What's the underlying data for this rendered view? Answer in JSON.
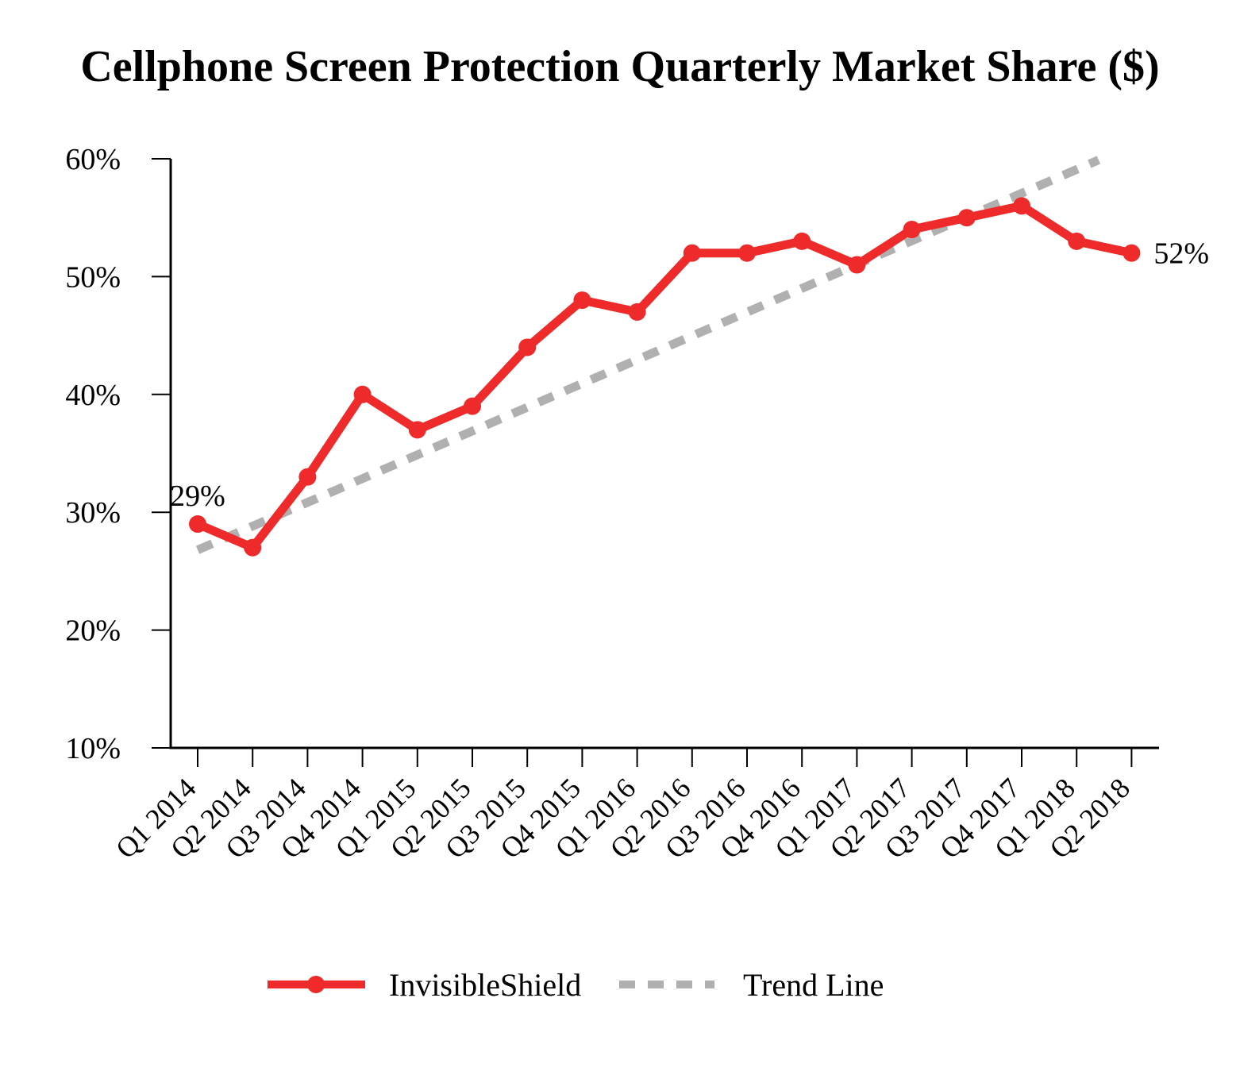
{
  "chart_data": {
    "type": "line",
    "title": "Cellphone Screen Protection Quarterly Market Share ($)",
    "xlabel": "",
    "ylabel": "",
    "categories": [
      "Q1 2014",
      "Q2 2014",
      "Q3 2014",
      "Q4 2014",
      "Q1 2015",
      "Q2 2015",
      "Q3 2015",
      "Q4 2015",
      "Q1 2016",
      "Q2 2016",
      "Q3 2016",
      "Q4 2016",
      "Q1 2017",
      "Q2 2017",
      "Q3 2017",
      "Q4 2017",
      "Q1 2018",
      "Q2 2018"
    ],
    "ylim": [
      10,
      60
    ],
    "yticks": [
      10,
      20,
      30,
      40,
      50,
      60
    ],
    "ytick_labels": [
      "10%",
      "20%",
      "30%",
      "40%",
      "50%",
      "60%"
    ],
    "grid": false,
    "legend_position": "bottom",
    "series": [
      {
        "name": "InvisibleShield",
        "color": "#ee2a2a",
        "style": "solid-with-markers",
        "values": [
          29,
          27,
          33,
          40,
          37,
          39,
          44,
          48,
          47,
          52,
          52,
          53,
          51,
          54,
          55,
          56,
          53,
          52
        ]
      },
      {
        "name": "Trend Line",
        "color": "#b0b0b0",
        "style": "dashed",
        "start": {
          "x_index": 0,
          "y": 26.8
        },
        "end": {
          "x_index": 16.4,
          "y": 59.9
        }
      }
    ],
    "annotations": [
      {
        "x_index": 0,
        "text": "29%",
        "anchor": "above"
      },
      {
        "x_index": 17,
        "text": "52%",
        "anchor": "right"
      }
    ]
  }
}
